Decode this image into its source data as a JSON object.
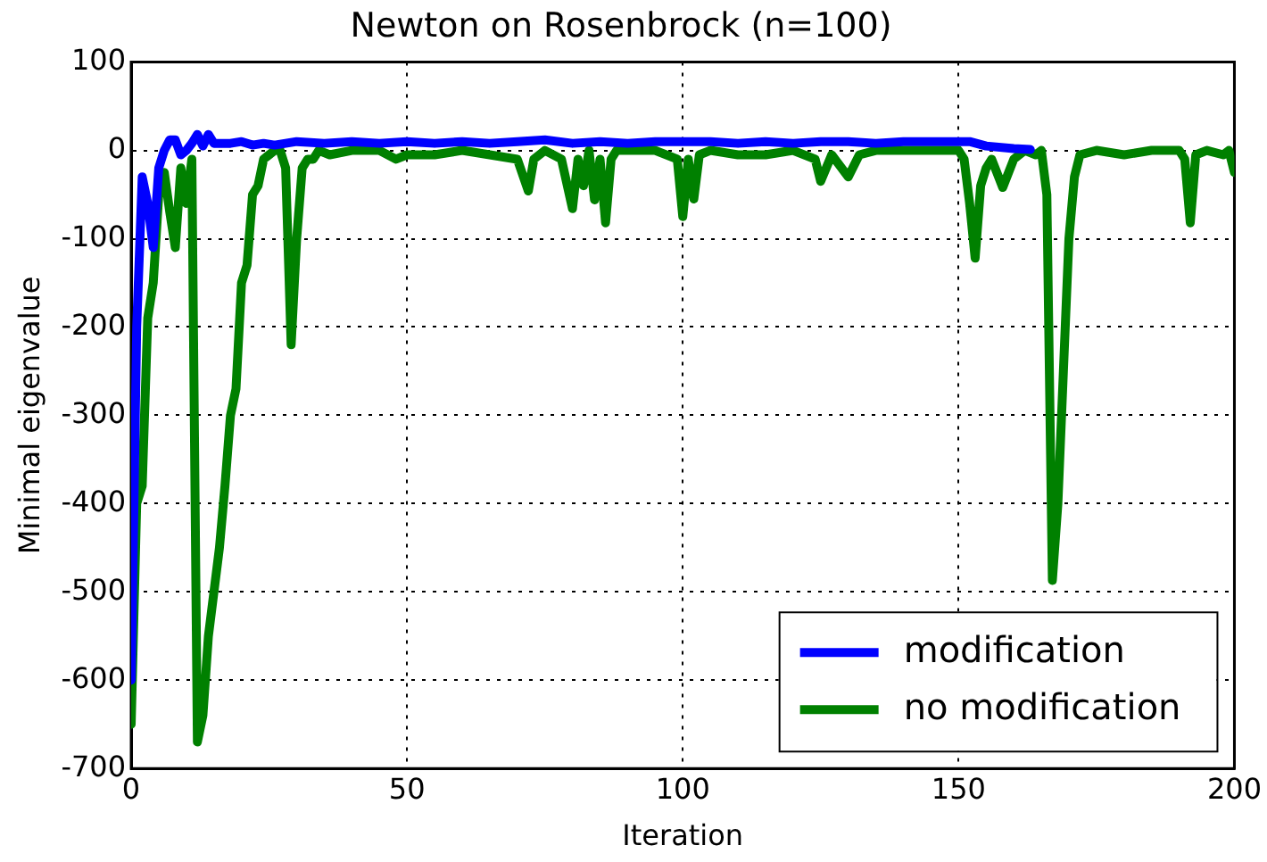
{
  "chart_data": {
    "type": "line",
    "title": "Newton on Rosenbrock (n=100)",
    "xlabel": "Iteration",
    "ylabel": "Minimal eigenvalue",
    "xlim": [
      0,
      200
    ],
    "xticks": [
      0,
      50,
      100,
      150,
      200
    ],
    "ylim": [
      -700,
      100
    ],
    "yticks": [
      -700,
      -600,
      -500,
      -400,
      -300,
      -200,
      -100,
      0,
      100
    ],
    "grid": true,
    "legend": "bottom right",
    "marker": "none",
    "line_style": "solid",
    "series": [
      {
        "name": "modification",
        "color": "#0000ff",
        "x": [
          0,
          1,
          2,
          3,
          4,
          5,
          6,
          7,
          8,
          9,
          10,
          11,
          12,
          13,
          14,
          15,
          16,
          18,
          20,
          22,
          24,
          26,
          28,
          30,
          35,
          40,
          45,
          50,
          55,
          60,
          65,
          70,
          75,
          80,
          85,
          90,
          95,
          100,
          105,
          110,
          115,
          120,
          125,
          130,
          135,
          140,
          145,
          150,
          152,
          155,
          160,
          163
        ],
        "values": [
          -600,
          -200,
          -30,
          -60,
          -110,
          -20,
          0,
          12,
          12,
          -5,
          0,
          8,
          18,
          5,
          18,
          8,
          8,
          8,
          10,
          6,
          8,
          6,
          8,
          10,
          8,
          10,
          8,
          10,
          8,
          10,
          8,
          10,
          12,
          8,
          10,
          8,
          10,
          10,
          10,
          8,
          10,
          8,
          10,
          10,
          8,
          10,
          10,
          10,
          10,
          5,
          2,
          1
        ]
      },
      {
        "name": "no modification",
        "color": "#008000",
        "x": [
          0,
          1,
          2,
          3,
          4,
          5,
          6,
          7,
          8,
          9,
          10,
          11,
          12,
          13,
          14,
          15,
          16,
          17,
          18,
          19,
          20,
          21,
          22,
          23,
          24,
          25,
          26,
          27,
          28,
          29,
          30,
          31,
          32,
          33,
          34,
          36,
          40,
          45,
          48,
          50,
          55,
          60,
          65,
          70,
          72,
          73,
          75,
          78,
          80,
          81,
          82,
          83,
          84,
          85,
          86,
          87,
          88,
          90,
          95,
          99,
          100,
          101,
          102,
          103,
          105,
          110,
          115,
          120,
          124,
          125,
          127,
          130,
          132,
          135,
          140,
          145,
          150,
          151,
          152,
          153,
          154,
          155,
          156,
          158,
          160,
          162,
          164,
          165,
          166,
          167,
          168,
          169,
          170,
          171,
          172,
          175,
          180,
          185,
          190,
          191,
          192,
          193,
          195,
          198,
          199,
          200
        ],
        "values": [
          -650,
          -400,
          -380,
          -190,
          -150,
          -50,
          -25,
          -70,
          -110,
          -20,
          -60,
          -10,
          -670,
          -640,
          -550,
          -500,
          -450,
          -380,
          -300,
          -270,
          -150,
          -130,
          -50,
          -40,
          -10,
          -5,
          0,
          0,
          -20,
          -220,
          -100,
          -20,
          -10,
          -10,
          0,
          -5,
          0,
          0,
          -10,
          -5,
          -5,
          0,
          -5,
          -10,
          -46,
          -10,
          0,
          -10,
          -66,
          -10,
          -40,
          0,
          -56,
          -10,
          -82,
          -10,
          0,
          0,
          0,
          -10,
          -75,
          -10,
          -55,
          -5,
          0,
          -5,
          -5,
          0,
          -10,
          -35,
          -5,
          -30,
          -5,
          0,
          0,
          0,
          0,
          -10,
          -60,
          -122,
          -40,
          -20,
          -10,
          -42,
          -10,
          0,
          -5,
          0,
          -50,
          -487,
          -400,
          -250,
          -100,
          -30,
          -5,
          0,
          -5,
          0,
          0,
          -10,
          -82,
          -5,
          0,
          -5,
          0,
          -25
        ]
      }
    ]
  }
}
